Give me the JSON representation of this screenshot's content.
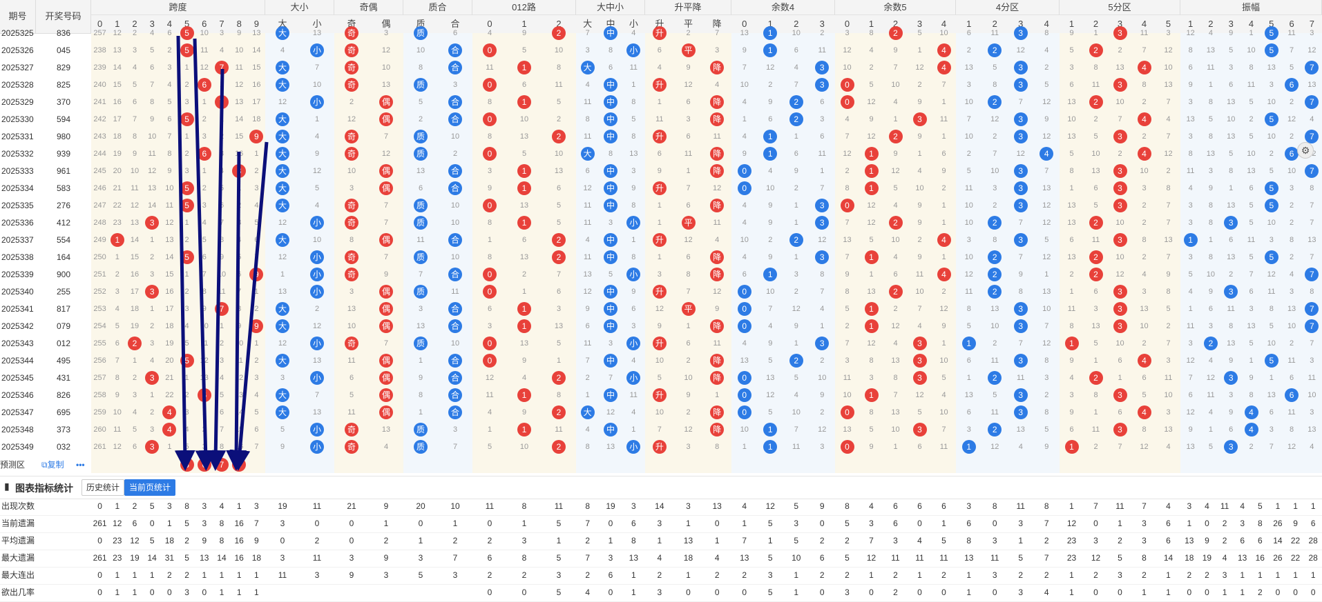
{
  "header": {
    "period_label": "期号",
    "number_label": "开奖号码",
    "groups": [
      {
        "title": "跨度",
        "subs": [
          "0",
          "1",
          "2",
          "3",
          "4",
          "5",
          "6",
          "7",
          "8",
          "9"
        ]
      },
      {
        "title": "大小",
        "subs": [
          "大",
          "小"
        ]
      },
      {
        "title": "奇偶",
        "subs": [
          "奇",
          "偶"
        ]
      },
      {
        "title": "质合",
        "subs": [
          "质",
          "合"
        ]
      },
      {
        "title": "012路",
        "subs": [
          "0",
          "1",
          "2"
        ]
      },
      {
        "title": "大中小",
        "subs": [
          "大",
          "中",
          "小"
        ]
      },
      {
        "title": "升平降",
        "subs": [
          "升",
          "平",
          "降"
        ]
      },
      {
        "title": "余数4",
        "subs": [
          "0",
          "1",
          "2",
          "3"
        ]
      },
      {
        "title": "余数5",
        "subs": [
          "0",
          "1",
          "2",
          "3",
          "4"
        ]
      },
      {
        "title": "4分区",
        "subs": [
          "1",
          "2",
          "3",
          "4"
        ]
      },
      {
        "title": "5分区",
        "subs": [
          "1",
          "2",
          "3",
          "4",
          "5"
        ]
      },
      {
        "title": "振幅",
        "subs": [
          "1",
          "2",
          "3",
          "4",
          "5",
          "6",
          "7"
        ]
      }
    ]
  },
  "rows": [
    {
      "period": "2025325",
      "number": "836"
    },
    {
      "period": "2025326",
      "number": "045"
    },
    {
      "period": "2025327",
      "number": "829"
    },
    {
      "period": "2025328",
      "number": "825"
    },
    {
      "period": "2025329",
      "number": "370"
    },
    {
      "period": "2025330",
      "number": "594"
    },
    {
      "period": "2025331",
      "number": "980"
    },
    {
      "period": "2025332",
      "number": "939"
    },
    {
      "period": "2025333",
      "number": "961"
    },
    {
      "period": "2025334",
      "number": "583"
    },
    {
      "period": "2025335",
      "number": "276"
    },
    {
      "period": "2025336",
      "number": "412"
    },
    {
      "period": "2025337",
      "number": "554"
    },
    {
      "period": "2025338",
      "number": "164"
    },
    {
      "period": "2025339",
      "number": "900"
    },
    {
      "period": "2025340",
      "number": "255"
    },
    {
      "period": "2025341",
      "number": "817"
    },
    {
      "period": "2025342",
      "number": "079"
    },
    {
      "period": "2025343",
      "number": "012"
    },
    {
      "period": "2025344",
      "number": "495"
    },
    {
      "period": "2025345",
      "number": "431"
    },
    {
      "period": "2025346",
      "number": "826"
    },
    {
      "period": "2025347",
      "number": "695"
    },
    {
      "period": "2025348",
      "number": "373"
    },
    {
      "period": "2025349",
      "number": "032"
    }
  ],
  "span_misses": [
    [
      "257",
      "12",
      "2",
      "4",
      "6",
      "",
      "10",
      "3",
      "9",
      "13"
    ],
    [
      "238",
      "13",
      "3",
      "5",
      "2",
      "",
      "11",
      "4",
      "10",
      "14"
    ],
    [
      "239",
      "14",
      "4",
      "6",
      "3",
      "1",
      "12",
      "",
      "11",
      "15"
    ],
    [
      "240",
      "15",
      "5",
      "7",
      "4",
      "2",
      "",
      "1",
      "12",
      "16"
    ],
    [
      "241",
      "16",
      "6",
      "8",
      "5",
      "3",
      "1",
      "",
      "13",
      "17"
    ],
    [
      "242",
      "17",
      "7",
      "9",
      "6",
      "",
      "2",
      "1",
      "14",
      "18"
    ],
    [
      "243",
      "18",
      "8",
      "10",
      "7",
      "1",
      "3",
      "2",
      "15",
      ""
    ],
    [
      "244",
      "19",
      "9",
      "11",
      "8",
      "2",
      "",
      "3",
      "16",
      "1"
    ],
    [
      "245",
      "20",
      "10",
      "12",
      "9",
      "3",
      "1",
      "4",
      "",
      "2"
    ],
    [
      "246",
      "21",
      "11",
      "13",
      "10",
      "",
      "2",
      "5",
      "1",
      "3"
    ],
    [
      "247",
      "22",
      "12",
      "14",
      "11",
      "",
      "3",
      "6",
      "2",
      "4"
    ],
    [
      "248",
      "23",
      "13",
      "",
      "12",
      "1",
      "4",
      "7",
      "3",
      "5"
    ],
    [
      "249",
      "",
      "14",
      "1",
      "13",
      "2",
      "5",
      "8",
      "4",
      "6"
    ],
    [
      "250",
      "1",
      "15",
      "2",
      "14",
      "",
      "6",
      "9",
      "5",
      "7"
    ],
    [
      "251",
      "2",
      "16",
      "3",
      "15",
      "1",
      "7",
      "10",
      "6",
      ""
    ],
    [
      "252",
      "3",
      "17",
      "",
      "16",
      "2",
      "8",
      "11",
      "7",
      "1"
    ],
    [
      "253",
      "4",
      "18",
      "1",
      "17",
      "3",
      "9",
      "",
      "8",
      "2"
    ],
    [
      "254",
      "5",
      "19",
      "2",
      "18",
      "4",
      "10",
      "1",
      "9",
      ""
    ],
    [
      "255",
      "6",
      "",
      "3",
      "19",
      "5",
      "11",
      "2",
      "10",
      "1"
    ],
    [
      "256",
      "7",
      "1",
      "4",
      "20",
      "",
      "12",
      "3",
      "11",
      "2"
    ],
    [
      "257",
      "8",
      "2",
      "",
      "21",
      "1",
      "13",
      "4",
      "12",
      "3"
    ],
    [
      "258",
      "9",
      "3",
      "1",
      "22",
      "2",
      "",
      "5",
      "13",
      "4"
    ],
    [
      "259",
      "10",
      "4",
      "2",
      "",
      "3",
      "1",
      "6",
      "14",
      "5"
    ],
    [
      "260",
      "11",
      "5",
      "3",
      "",
      "4",
      "2",
      "7",
      "15",
      "6"
    ],
    [
      "261",
      "12",
      "6",
      "",
      "1",
      "5",
      "3",
      "8",
      "16",
      "7"
    ]
  ],
  "span_hits": [
    5,
    5,
    7,
    6,
    7,
    5,
    9,
    6,
    8,
    5,
    5,
    3,
    1,
    5,
    9,
    3,
    7,
    9,
    2,
    5,
    3,
    6,
    4,
    4,
    3
  ],
  "predict": {
    "label": "预测区",
    "copy_label": "复制",
    "balls": [
      "5",
      "6",
      "7",
      "8"
    ]
  },
  "stats": {
    "title": "图表指标统计",
    "btn_history": "历史统计",
    "btn_current": "当前页统计",
    "rows": [
      {
        "label": "出现次数",
        "span": [
          "0",
          "1",
          "2",
          "5",
          "3",
          "8",
          "3",
          "4",
          "1",
          "3"
        ],
        "dx": [
          "19",
          "11"
        ],
        "jo": [
          "21",
          "9"
        ],
        "zh": [
          "20",
          "10"
        ],
        "r012": [
          "11",
          "8",
          "11"
        ],
        "dzx": [
          "8",
          "19",
          "3"
        ],
        "spj": [
          "14",
          "3",
          "13"
        ],
        "ys4": [
          "4",
          "12",
          "5",
          "9"
        ],
        "ys5": [
          "8",
          "4",
          "6",
          "6",
          "6"
        ],
        "fq4": [
          "3",
          "8",
          "11",
          "8"
        ],
        "fq5": [
          "1",
          "7",
          "11",
          "7",
          "4"
        ],
        "zf": [
          "3",
          "4",
          "11",
          "4",
          "5",
          "1",
          "1",
          "1"
        ]
      },
      {
        "label": "当前遗漏",
        "span": [
          "261",
          "12",
          "6",
          "0",
          "1",
          "5",
          "3",
          "8",
          "16",
          "7"
        ],
        "dx": [
          "3",
          "0"
        ],
        "jo": [
          "0",
          "1"
        ],
        "zh": [
          "0",
          "1"
        ],
        "r012": [
          "0",
          "1",
          "5"
        ],
        "dzx": [
          "7",
          "0",
          "6"
        ],
        "spj": [
          "3",
          "1",
          "0"
        ],
        "ys4": [
          "1",
          "5",
          "3",
          "0"
        ],
        "ys5": [
          "5",
          "3",
          "6",
          "0",
          "1"
        ],
        "fq4": [
          "6",
          "0",
          "3",
          "7"
        ],
        "fq5": [
          "12",
          "0",
          "1",
          "3",
          "6"
        ],
        "zf": [
          "1",
          "0",
          "2",
          "3",
          "8",
          "26",
          "9",
          "6"
        ]
      },
      {
        "label": "平均遗漏",
        "span": [
          "0",
          "23",
          "12",
          "5",
          "18",
          "2",
          "9",
          "8",
          "16",
          "9"
        ],
        "dx": [
          "0",
          "2"
        ],
        "jo": [
          "0",
          "2"
        ],
        "zh": [
          "1",
          "2"
        ],
        "r012": [
          "2",
          "3",
          "1"
        ],
        "dzx": [
          "2",
          "1",
          "8"
        ],
        "spj": [
          "1",
          "13",
          "1"
        ],
        "ys4": [
          "7",
          "1",
          "5",
          "2"
        ],
        "ys5": [
          "2",
          "7",
          "3",
          "4",
          "5"
        ],
        "fq4": [
          "8",
          "3",
          "1",
          "2"
        ],
        "fq5": [
          "23",
          "3",
          "2",
          "3",
          "6"
        ],
        "zf": [
          "13",
          "9",
          "2",
          "6",
          "6",
          "14",
          "22",
          "28"
        ]
      },
      {
        "label": "最大遗漏",
        "span": [
          "261",
          "23",
          "19",
          "14",
          "31",
          "5",
          "13",
          "14",
          "16",
          "18"
        ],
        "dx": [
          "3",
          "11"
        ],
        "jo": [
          "3",
          "9"
        ],
        "zh": [
          "3",
          "7"
        ],
        "r012": [
          "6",
          "8",
          "5"
        ],
        "dzx": [
          "7",
          "3",
          "13"
        ],
        "spj": [
          "4",
          "18",
          "4"
        ],
        "ys4": [
          "13",
          "5",
          "10",
          "6"
        ],
        "ys5": [
          "5",
          "12",
          "11",
          "11",
          "11"
        ],
        "fq4": [
          "13",
          "11",
          "5",
          "7"
        ],
        "fq5": [
          "23",
          "12",
          "5",
          "8",
          "14"
        ],
        "zf": [
          "18",
          "19",
          "4",
          "13",
          "16",
          "26",
          "22",
          "28"
        ]
      },
      {
        "label": "最大连出",
        "span": [
          "0",
          "1",
          "1",
          "1",
          "2",
          "2",
          "1",
          "1",
          "1",
          "1"
        ],
        "dx": [
          "11",
          "3"
        ],
        "jo": [
          "9",
          "3"
        ],
        "zh": [
          "5",
          "3"
        ],
        "r012": [
          "2",
          "2",
          "3"
        ],
        "dzx": [
          "2",
          "6",
          "1"
        ],
        "spj": [
          "2",
          "1",
          "2"
        ],
        "ys4": [
          "2",
          "3",
          "1",
          "2"
        ],
        "ys5": [
          "2",
          "1",
          "2",
          "1",
          "2"
        ],
        "fq4": [
          "1",
          "3",
          "2",
          "2"
        ],
        "fq5": [
          "1",
          "2",
          "3",
          "2",
          "1"
        ],
        "zf": [
          "2",
          "2",
          "3",
          "1",
          "1",
          "1",
          "1",
          "1"
        ]
      },
      {
        "label": "欲出几率",
        "span": [
          "0",
          "1",
          "1",
          "0",
          "0",
          "3",
          "0",
          "1",
          "1",
          "1"
        ],
        "dx": [
          "",
          ""
        ],
        "jo": [
          "",
          ""
        ],
        "zh": [
          "",
          ""
        ],
        "r012": [
          "0",
          "0",
          "5"
        ],
        "dzx": [
          "4",
          "0",
          "1"
        ],
        "spj": [
          "3",
          "0",
          "0"
        ],
        "ys4": [
          "0",
          "5",
          "1",
          "0"
        ],
        "ys5": [
          "3",
          "0",
          "2",
          "0",
          "0"
        ],
        "fq4": [
          "1",
          "0",
          "3",
          "4"
        ],
        "fq5": [
          "1",
          "0",
          "0",
          "1",
          "1"
        ],
        "zf": [
          "0",
          "0",
          "1",
          "1",
          "2",
          "0",
          "0",
          "0"
        ]
      }
    ]
  },
  "colors": {
    "red": "#e8413a",
    "blue": "#2d7be5",
    "arrow": "#0b0f7a",
    "header_bg": "#f4f4f4"
  }
}
